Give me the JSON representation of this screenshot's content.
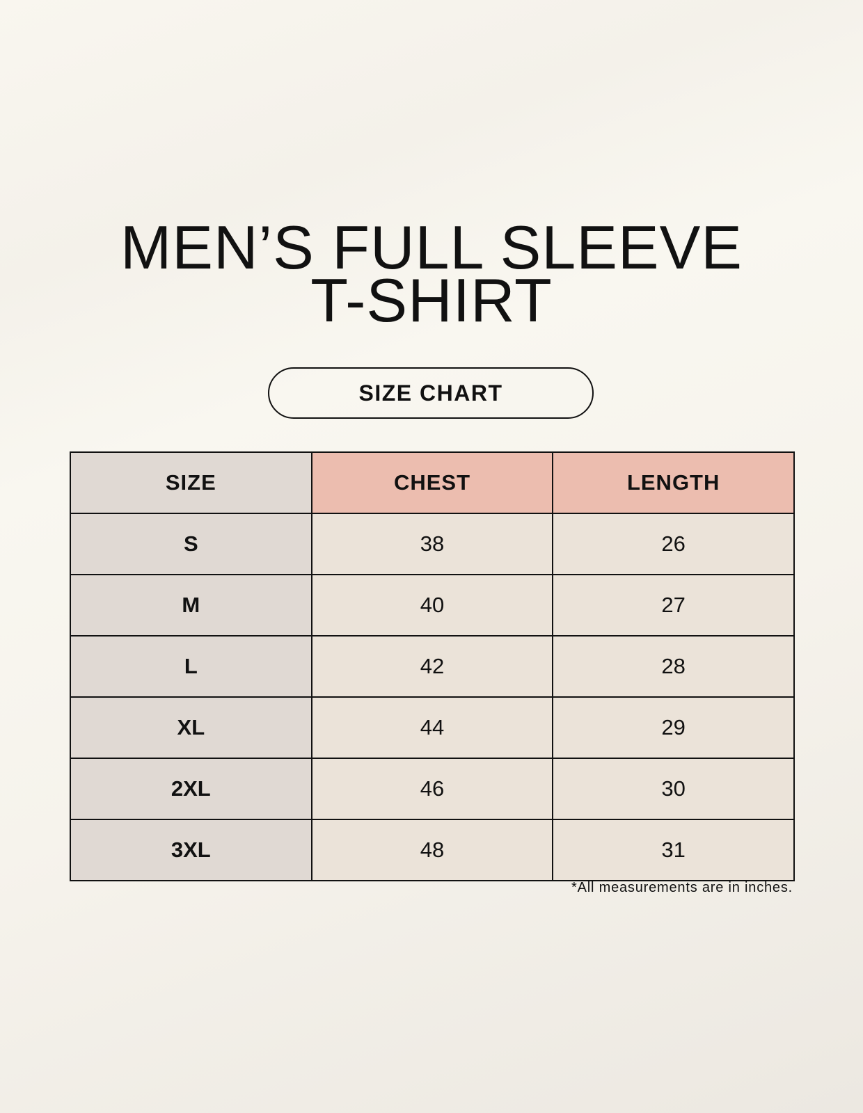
{
  "title": {
    "line1": "MEN’S FULL SLEEVE",
    "line2": "T-SHIRT"
  },
  "badge": "SIZE CHART",
  "table": {
    "headers": [
      "SIZE",
      "CHEST",
      "LENGTH"
    ],
    "rows": [
      [
        "S",
        "38",
        "26"
      ],
      [
        "M",
        "40",
        "27"
      ],
      [
        "L",
        "42",
        "28"
      ],
      [
        "XL",
        "44",
        "29"
      ],
      [
        "2XL",
        "46",
        "30"
      ],
      [
        "3XL",
        "48",
        "31"
      ]
    ]
  },
  "footnote": "*All measurements are in inches.",
  "colors": {
    "size_column": "#e0d9d3",
    "measure_header": "#ecbdaf",
    "value_cells": "#ebe3d9"
  }
}
